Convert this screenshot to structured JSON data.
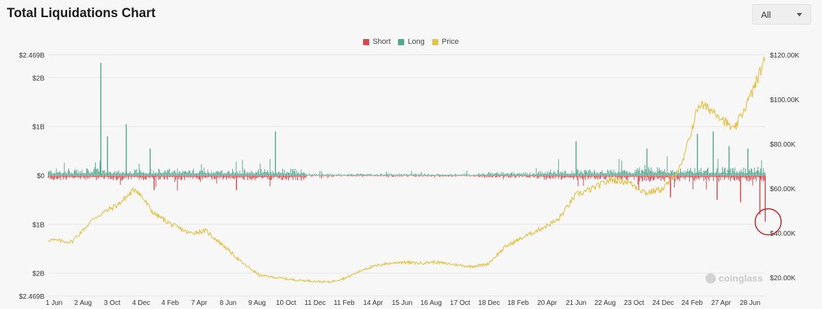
{
  "header": {
    "title": "Total Liquidations Chart"
  },
  "range_select": {
    "value": "All"
  },
  "watermark": {
    "text": "coinglass",
    "icon": "coinglass-logo-icon"
  },
  "colors": {
    "short": "#d9474b",
    "long": "#4fa98d",
    "price": "#e3c24a",
    "highlight": "#c8282c"
  },
  "chart_data": {
    "type": "bar",
    "title": "Total Liquidations Chart",
    "legend": [
      "Short",
      "Long",
      "Price"
    ],
    "legend_position": "top-center",
    "grid": true,
    "x_start": "2019-06-01",
    "x_end": "2024-07-05",
    "x_tick_labels": [
      "1 Jun",
      "2 Aug",
      "3 Oct",
      "4 Dec",
      "4 Feb",
      "7 Apr",
      "8 Jun",
      "9 Aug",
      "10 Oct",
      "11 Dec",
      "11 Feb",
      "14 Apr",
      "15 Jun",
      "16 Aug",
      "17 Oct",
      "18 Dec",
      "18 Feb",
      "20 Apr",
      "21 Jun",
      "22 Aug",
      "23 Oct",
      "24 Dec",
      "24 Feb",
      "27 Apr",
      "28 Jun"
    ],
    "y_left": {
      "min": -2.469,
      "max": 2.469,
      "unit": "B USD",
      "ticks": [
        {
          "value": 2.469,
          "label": "$2.469B"
        },
        {
          "value": 2,
          "label": "$2B"
        },
        {
          "value": 1,
          "label": "$1B"
        },
        {
          "value": 0,
          "label": "$0"
        },
        {
          "value": -1,
          "label": "$1B"
        },
        {
          "value": -2,
          "label": "$2B"
        },
        {
          "value": -2.469,
          "label": "$2.469B"
        }
      ]
    },
    "y_right": {
      "min": 13000,
      "max": 120000,
      "unit": "USD",
      "ticks": [
        {
          "value": 120000,
          "label": "$120.00K"
        },
        {
          "value": 100000,
          "label": "$100.00K"
        },
        {
          "value": 80000,
          "label": "$80.00K"
        },
        {
          "value": 60000,
          "label": "$60.00K"
        },
        {
          "value": 40000,
          "label": "$40.00K"
        },
        {
          "value": 20000,
          "label": "$20.00K"
        }
      ]
    },
    "series": [
      {
        "name": "Price",
        "kind": "line",
        "x": [
          "2019-06-01",
          "2019-08-01",
          "2019-10-01",
          "2019-12-01",
          "2020-01-15",
          "2020-03-01",
          "2020-04-15",
          "2020-06-01",
          "2020-07-15",
          "2020-09-01",
          "2020-10-15",
          "2020-12-01",
          "2021-01-15",
          "2021-03-01",
          "2021-04-15",
          "2021-06-01",
          "2021-07-15",
          "2021-09-01",
          "2021-10-15",
          "2021-12-01",
          "2022-01-15",
          "2022-03-01",
          "2022-04-15",
          "2022-06-01",
          "2022-07-15",
          "2022-09-01",
          "2022-10-15",
          "2022-12-01",
          "2023-01-15",
          "2023-03-01",
          "2023-04-15",
          "2023-06-01",
          "2023-07-15",
          "2023-09-01",
          "2023-10-15",
          "2023-12-01",
          "2024-01-15",
          "2024-03-01",
          "2024-04-15",
          "2024-06-01",
          "2024-07-05"
        ],
        "y": [
          37000,
          36000,
          47000,
          53000,
          60000,
          49000,
          44000,
          40000,
          41000,
          34000,
          27000,
          21000,
          20000,
          19000,
          18500,
          18000,
          20000,
          24000,
          26000,
          27000,
          26500,
          27000,
          26000,
          25000,
          26000,
          34000,
          38000,
          42000,
          46000,
          57000,
          60000,
          64000,
          63000,
          58000,
          60000,
          70000,
          98000,
          94000,
          86000,
          103000,
          118000
        ]
      },
      {
        "name": "Long",
        "kind": "bar",
        "spikes": [
          {
            "date": "2019-10-15",
            "value": 2.3
          },
          {
            "date": "2019-12-20",
            "value": 1.05
          },
          {
            "date": "2019-11-01",
            "value": 0.8
          },
          {
            "date": "2020-02-20",
            "value": 0.55
          },
          {
            "date": "2021-01-10",
            "value": 0.9
          },
          {
            "date": "2023-03-01",
            "value": 0.7
          },
          {
            "date": "2023-09-01",
            "value": 0.55
          },
          {
            "date": "2024-01-10",
            "value": 0.85
          },
          {
            "date": "2024-02-20",
            "value": 0.9
          },
          {
            "date": "2024-04-01",
            "value": 0.6
          },
          {
            "date": "2024-05-20",
            "value": 0.55
          }
        ]
      },
      {
        "name": "Short",
        "kind": "bar",
        "spikes": [
          {
            "date": "2020-03-01",
            "value": -0.3
          },
          {
            "date": "2020-10-01",
            "value": -0.3
          },
          {
            "date": "2023-11-01",
            "value": -0.45
          },
          {
            "date": "2024-03-01",
            "value": -0.5
          },
          {
            "date": "2024-05-01",
            "value": -0.55
          },
          {
            "date": "2024-06-20",
            "value": -0.8
          },
          {
            "date": "2024-07-04",
            "value": -0.95
          }
        ]
      }
    ]
  }
}
